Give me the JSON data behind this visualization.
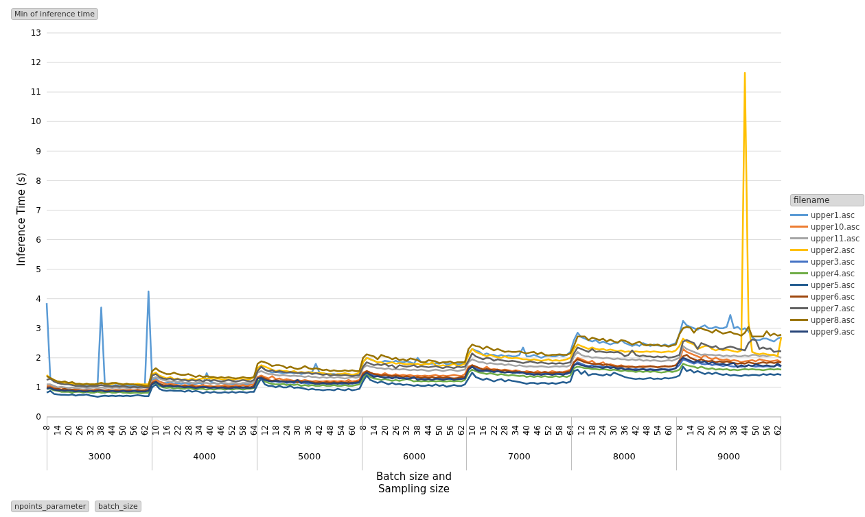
{
  "chart_data": {
    "type": "line",
    "title": "Min of inference time",
    "xlabel": "Batch size and Sampling size",
    "ylabel": "Inference Time (s)",
    "legend_title": "filename",
    "legend": "right",
    "grid": "y",
    "marker": "none",
    "line_style": "solid",
    "ylim": [
      0,
      13
    ],
    "yticks": [
      0,
      1,
      2,
      3,
      4,
      5,
      6,
      7,
      8,
      9,
      10,
      11,
      12,
      13
    ],
    "annotations": [
      "3000",
      "4000",
      "5000",
      "6000",
      "7000",
      "8000",
      "9000",
      "npoints_parameter",
      "batch_size"
    ],
    "categories": [
      "8",
      null,
      null,
      "14",
      null,
      null,
      "20",
      null,
      null,
      "26",
      null,
      null,
      "32",
      null,
      null,
      "38",
      null,
      null,
      "44",
      null,
      null,
      "50",
      null,
      null,
      "56",
      null,
      null,
      "62",
      null,
      null,
      "10",
      null,
      null,
      "16",
      null,
      null,
      "22",
      null,
      null,
      "28",
      null,
      null,
      "34",
      null,
      null,
      "40",
      null,
      null,
      "46",
      null,
      null,
      "52",
      null,
      null,
      "58",
      null,
      null,
      "64",
      null,
      null,
      "12",
      null,
      null,
      "18",
      null,
      null,
      "24",
      null,
      null,
      "30",
      null,
      null,
      "36",
      null,
      null,
      "42",
      null,
      null,
      "48",
      null,
      null,
      "54",
      null,
      null,
      "60",
      null,
      null,
      "8",
      null,
      null,
      "14",
      null,
      null,
      "20",
      null,
      null,
      "26",
      null,
      null,
      "32",
      null,
      null,
      "38",
      null,
      null,
      "44",
      null,
      null,
      "50",
      null,
      null,
      "56",
      null,
      null,
      "62",
      null,
      null,
      "10",
      null,
      null,
      "16",
      null,
      null,
      "22",
      null,
      null,
      "28",
      null,
      null,
      "34",
      null,
      null,
      "40",
      null,
      null,
      "46",
      null,
      null,
      "52",
      null,
      null,
      "58",
      null,
      null,
      "64",
      null,
      null,
      "12",
      null,
      null,
      "18",
      null,
      null,
      "24",
      null,
      null,
      "30",
      null,
      null,
      "36",
      null,
      null,
      "42",
      null,
      null,
      "48",
      null,
      null,
      "54",
      null,
      null,
      "60",
      null,
      null,
      "8",
      null,
      null,
      "14",
      null,
      null,
      "20",
      null,
      null,
      "26",
      null,
      null,
      "32",
      null,
      null,
      "38",
      null,
      null,
      "44",
      null,
      null,
      "50",
      null,
      null,
      "56",
      null,
      null,
      "62",
      null
    ],
    "series": [
      {
        "name": "upper1.asc",
        "color": "#5b9bd5",
        "values": [
          3.85,
          1.3,
          1.2,
          1.15,
          1.15,
          1.2,
          1.1,
          1.12,
          1.05,
          1.05,
          1.08,
          1.05,
          1.05,
          1.05,
          1.1,
          3.7,
          1.08,
          1.05,
          1.05,
          1.08,
          1.05,
          1.05,
          1.08,
          1.05,
          1.05,
          1.05,
          1.05,
          1.05,
          4.25,
          1.25,
          1.3,
          1.2,
          1.15,
          1.15,
          1.18,
          1.12,
          1.15,
          1.12,
          1.15,
          1.12,
          1.1,
          1.12,
          1.15,
          1.1,
          1.48,
          1.2,
          1.15,
          1.12,
          1.15,
          1.12,
          1.1,
          1.12,
          1.1,
          1.12,
          1.1,
          1.12,
          1.1,
          1.1,
          1.65,
          1.7,
          1.6,
          1.55,
          1.5,
          1.52,
          1.5,
          1.48,
          1.5,
          1.5,
          1.48,
          1.5,
          1.45,
          1.48,
          1.5,
          1.52,
          1.8,
          1.5,
          1.48,
          1.45,
          1.45,
          1.45,
          1.42,
          1.45,
          1.42,
          1.45,
          1.42,
          1.4,
          1.4,
          1.85,
          2.0,
          1.95,
          1.9,
          1.85,
          1.85,
          1.9,
          1.88,
          1.85,
          1.9,
          1.85,
          1.85,
          1.88,
          1.85,
          1.8,
          2.0,
          1.85,
          1.85,
          1.8,
          1.8,
          1.82,
          1.8,
          1.85,
          1.78,
          1.8,
          1.82,
          1.78,
          1.8,
          1.85,
          2.15,
          2.3,
          2.25,
          2.2,
          2.1,
          2.15,
          2.1,
          2.1,
          2.05,
          2.1,
          2.05,
          2.08,
          2.05,
          2.05,
          2.1,
          2.35,
          2.05,
          2.05,
          2.1,
          2.05,
          2.0,
          2.05,
          2.08,
          2.05,
          2.05,
          2.1,
          2.05,
          2.1,
          2.2,
          2.6,
          2.85,
          2.7,
          2.65,
          2.6,
          2.55,
          2.6,
          2.5,
          2.55,
          2.5,
          2.45,
          2.5,
          2.5,
          2.6,
          2.5,
          2.45,
          2.4,
          2.45,
          2.4,
          2.5,
          2.45,
          2.4,
          2.45,
          2.42,
          2.4,
          2.45,
          2.4,
          2.45,
          2.5,
          2.8,
          3.25,
          3.1,
          3.05,
          3.0,
          2.95,
          3.05,
          3.1,
          3.0,
          3.0,
          3.05,
          3.0,
          3.0,
          3.05,
          3.45,
          3.0,
          3.05,
          2.95,
          3.0,
          2.9,
          2.7,
          2.6,
          2.6,
          2.65,
          2.65,
          2.6,
          2.55,
          2.65,
          2.7
        ]
      },
      {
        "name": "upper10.asc",
        "color": "#ed7d31",
        "values": [
          1.05,
          1.05,
          1.0,
          0.95,
          1.0,
          0.95,
          0.95,
          0.92,
          0.95,
          0.92,
          0.9,
          0.92,
          0.9,
          0.92,
          0.95,
          0.92,
          0.9,
          0.92,
          0.9,
          0.92,
          0.9,
          0.92,
          0.9,
          0.92,
          0.9,
          0.92,
          0.9,
          0.92,
          0.95,
          1.2,
          1.25,
          1.2,
          1.15,
          1.1,
          1.12,
          1.1,
          1.08,
          1.05,
          1.08,
          1.05,
          1.08,
          1.05,
          1.05,
          1.08,
          1.05,
          1.05,
          1.02,
          1.05,
          1.05,
          1.08,
          1.05,
          1.05,
          1.08,
          1.05,
          1.08,
          1.05,
          1.08,
          1.1,
          1.35,
          1.4,
          1.35,
          1.3,
          1.38,
          1.28,
          1.3,
          1.25,
          1.28,
          1.25,
          1.22,
          1.25,
          1.22,
          1.25,
          1.22,
          1.2,
          1.22,
          1.2,
          1.2,
          1.22,
          1.2,
          1.22,
          1.2,
          1.22,
          1.2,
          1.25,
          1.2,
          1.22,
          1.25,
          1.5,
          1.55,
          1.5,
          1.45,
          1.45,
          1.42,
          1.48,
          1.42,
          1.4,
          1.45,
          1.4,
          1.42,
          1.4,
          1.42,
          1.38,
          1.4,
          1.38,
          1.4,
          1.38,
          1.4,
          1.42,
          1.38,
          1.4,
          1.38,
          1.4,
          1.42,
          1.4,
          1.38,
          1.45,
          1.7,
          1.75,
          1.7,
          1.65,
          1.62,
          1.7,
          1.6,
          1.62,
          1.6,
          1.58,
          1.6,
          1.58,
          1.55,
          1.58,
          1.55,
          1.5,
          1.55,
          1.52,
          1.5,
          1.55,
          1.5,
          1.52,
          1.5,
          1.55,
          1.52,
          1.5,
          1.52,
          1.55,
          1.6,
          1.85,
          2.0,
          1.95,
          1.9,
          1.85,
          1.9,
          1.8,
          1.8,
          1.85,
          1.75,
          1.78,
          1.75,
          1.72,
          1.75,
          1.7,
          1.72,
          1.7,
          1.68,
          1.7,
          1.72,
          1.7,
          1.72,
          1.7,
          1.68,
          1.7,
          1.72,
          1.7,
          1.72,
          1.75,
          1.9,
          2.3,
          2.2,
          2.15,
          2.1,
          2.05,
          2.0,
          2.1,
          2.0,
          1.95,
          2.0,
          1.95,
          1.92,
          1.95,
          1.9,
          1.92,
          1.9,
          1.85,
          1.88,
          1.9,
          1.92,
          1.88,
          1.95,
          1.92,
          1.9,
          1.88,
          1.9,
          1.92,
          1.85
        ]
      },
      {
        "name": "upper11.asc",
        "color": "#a5a5a5",
        "values": [
          1.1,
          1.1,
          1.05,
          1.0,
          1.02,
          1.0,
          0.98,
          1.0,
          0.98,
          0.98,
          1.0,
          0.98,
          0.98,
          1.0,
          0.98,
          1.0,
          0.98,
          1.0,
          0.98,
          1.0,
          0.98,
          1.0,
          0.98,
          0.98,
          1.0,
          0.98,
          0.98,
          1.0,
          1.0,
          1.3,
          1.35,
          1.3,
          1.25,
          1.22,
          1.2,
          1.2,
          1.18,
          1.2,
          1.15,
          1.18,
          1.15,
          1.15,
          1.18,
          1.15,
          1.15,
          1.12,
          1.15,
          1.12,
          1.15,
          1.15,
          1.12,
          1.15,
          1.15,
          1.12,
          1.15,
          1.15,
          1.15,
          1.2,
          1.5,
          1.55,
          1.5,
          1.45,
          1.45,
          1.42,
          1.4,
          1.42,
          1.4,
          1.38,
          1.4,
          1.38,
          1.38,
          1.35,
          1.38,
          1.35,
          1.35,
          1.32,
          1.35,
          1.32,
          1.35,
          1.32,
          1.35,
          1.32,
          1.3,
          1.32,
          1.35,
          1.32,
          1.35,
          1.65,
          1.75,
          1.7,
          1.68,
          1.65,
          1.65,
          1.62,
          1.65,
          1.6,
          1.62,
          1.6,
          1.62,
          1.6,
          1.58,
          1.6,
          1.58,
          1.6,
          1.58,
          1.55,
          1.58,
          1.6,
          1.58,
          1.55,
          1.58,
          1.6,
          1.58,
          1.55,
          1.58,
          1.6,
          1.85,
          1.95,
          1.9,
          1.85,
          1.85,
          1.8,
          1.82,
          1.8,
          1.78,
          1.8,
          1.75,
          1.78,
          1.75,
          1.72,
          1.75,
          1.72,
          1.7,
          1.72,
          1.7,
          1.7,
          1.72,
          1.7,
          1.68,
          1.7,
          1.72,
          1.7,
          1.72,
          1.7,
          1.75,
          2.05,
          2.2,
          2.1,
          2.05,
          2.05,
          2.0,
          2.02,
          2.0,
          1.98,
          2.0,
          1.98,
          1.95,
          1.98,
          1.95,
          1.95,
          1.92,
          1.95,
          1.92,
          1.95,
          1.9,
          1.92,
          1.9,
          1.92,
          1.9,
          1.88,
          1.9,
          1.92,
          1.9,
          1.95,
          2.0,
          2.4,
          2.3,
          2.25,
          2.2,
          2.15,
          2.1,
          2.12,
          2.1,
          2.1,
          2.08,
          2.1,
          2.05,
          2.08,
          2.05,
          2.08,
          2.05,
          2.05,
          2.08,
          2.05,
          2.1,
          2.1,
          2.05,
          2.08,
          2.05,
          2.08,
          2.1,
          2.05,
          2.0
        ]
      },
      {
        "name": "upper2.asc",
        "color": "#ffc000",
        "values": [
          1.42,
          1.3,
          1.25,
          1.2,
          1.18,
          1.15,
          1.15,
          1.12,
          1.1,
          1.12,
          1.1,
          1.12,
          1.1,
          1.1,
          1.12,
          1.15,
          1.12,
          1.1,
          1.12,
          1.15,
          1.12,
          1.1,
          1.12,
          1.1,
          1.1,
          1.12,
          1.1,
          1.1,
          1.1,
          1.45,
          1.5,
          1.4,
          1.35,
          1.3,
          1.35,
          1.28,
          1.3,
          1.25,
          1.28,
          1.25,
          1.3,
          1.25,
          1.28,
          1.3,
          1.3,
          1.3,
          1.28,
          1.3,
          1.28,
          1.25,
          1.28,
          1.25,
          1.28,
          1.3,
          1.28,
          1.25,
          1.28,
          1.35,
          1.65,
          1.75,
          1.7,
          1.65,
          1.6,
          1.55,
          1.58,
          1.55,
          1.55,
          1.52,
          1.55,
          1.5,
          1.52,
          1.5,
          1.52,
          1.5,
          1.48,
          1.5,
          1.48,
          1.45,
          1.45,
          1.42,
          1.45,
          1.45,
          1.48,
          1.45,
          1.42,
          1.45,
          1.5,
          1.85,
          2.0,
          1.95,
          1.9,
          1.85,
          1.85,
          1.8,
          1.82,
          1.85,
          1.8,
          1.82,
          1.8,
          1.78,
          1.8,
          1.78,
          1.8,
          1.75,
          1.8,
          1.78,
          1.85,
          1.75,
          1.72,
          1.75,
          1.72,
          1.75,
          1.8,
          1.72,
          1.75,
          1.8,
          2.1,
          2.3,
          2.2,
          2.15,
          2.1,
          2.05,
          2.1,
          2.05,
          2.02,
          2.0,
          2.05,
          2.0,
          1.98,
          2.0,
          1.98,
          1.95,
          1.95,
          1.92,
          1.95,
          1.92,
          1.9,
          1.92,
          1.95,
          1.9,
          1.92,
          1.9,
          1.92,
          1.95,
          2.0,
          2.3,
          2.45,
          2.4,
          2.35,
          2.3,
          2.35,
          2.3,
          2.28,
          2.3,
          2.25,
          2.28,
          2.25,
          2.22,
          2.25,
          2.2,
          2.22,
          2.2,
          2.22,
          2.2,
          2.2,
          2.22,
          2.2,
          2.22,
          2.2,
          2.18,
          2.2,
          2.22,
          2.2,
          2.25,
          2.4,
          2.65,
          2.55,
          2.5,
          2.45,
          2.3,
          2.35,
          2.4,
          2.4,
          2.3,
          2.25,
          2.3,
          2.25,
          2.28,
          2.25,
          2.22,
          2.2,
          2.25,
          11.65,
          3.2,
          2.2,
          2.15,
          2.12,
          2.15,
          2.12,
          2.1,
          2.1,
          2.05,
          2.7
        ]
      },
      {
        "name": "upper3.asc",
        "color": "#4472c4",
        "values": [
          1.0,
          1.0,
          0.95,
          0.92,
          0.92,
          0.9,
          0.9,
          0.88,
          0.9,
          0.88,
          0.88,
          0.9,
          0.88,
          0.88,
          0.9,
          0.88,
          0.88,
          0.86,
          0.88,
          0.88,
          0.86,
          0.88,
          0.88,
          0.86,
          0.88,
          0.88,
          0.86,
          0.88,
          0.9,
          1.15,
          1.2,
          1.1,
          1.05,
          1.05,
          1.02,
          1.05,
          1.0,
          1.02,
          1.0,
          1.02,
          1.0,
          0.98,
          1.0,
          1.02,
          1.0,
          0.98,
          1.0,
          0.98,
          1.0,
          1.0,
          0.98,
          1.0,
          1.02,
          1.0,
          0.98,
          1.0,
          1.0,
          1.02,
          1.3,
          1.35,
          1.25,
          1.22,
          1.2,
          1.2,
          1.18,
          1.2,
          1.15,
          1.18,
          1.15,
          1.18,
          1.15,
          1.15,
          1.12,
          1.15,
          1.12,
          1.15,
          1.12,
          1.15,
          1.12,
          1.12,
          1.15,
          1.12,
          1.12,
          1.15,
          1.12,
          1.15,
          1.15,
          1.4,
          1.5,
          1.45,
          1.4,
          1.38,
          1.35,
          1.35,
          1.32,
          1.35,
          1.32,
          1.35,
          1.3,
          1.32,
          1.3,
          1.32,
          1.3,
          1.28,
          1.3,
          1.28,
          1.25,
          1.28,
          1.3,
          1.28,
          1.3,
          1.28,
          1.3,
          1.28,
          1.3,
          1.32,
          1.6,
          1.7,
          1.65,
          1.6,
          1.58,
          1.55,
          1.55,
          1.52,
          1.55,
          1.52,
          1.5,
          1.52,
          1.5,
          1.5,
          1.48,
          1.5,
          1.45,
          1.48,
          1.45,
          1.48,
          1.45,
          1.48,
          1.45,
          1.45,
          1.48,
          1.45,
          1.48,
          1.45,
          1.5,
          1.75,
          1.85,
          1.8,
          1.75,
          1.72,
          1.75,
          1.7,
          1.72,
          1.7,
          1.68,
          1.7,
          1.68,
          1.65,
          1.68,
          1.6,
          1.62,
          1.6,
          1.62,
          1.6,
          1.62,
          1.6,
          1.62,
          1.6,
          1.58,
          1.6,
          1.62,
          1.6,
          1.62,
          1.65,
          1.75,
          1.95,
          1.9,
          1.85,
          1.8,
          1.85,
          1.8,
          1.78,
          1.8,
          1.75,
          1.78,
          1.75,
          1.72,
          1.75,
          1.72,
          1.7,
          1.72,
          1.7,
          1.72,
          1.75,
          1.72,
          1.7,
          1.72,
          1.7,
          1.72,
          1.7,
          1.72,
          1.75,
          1.7
        ]
      },
      {
        "name": "upper4.asc",
        "color": "#70ad47",
        "values": [
          0.95,
          0.95,
          0.9,
          0.88,
          0.85,
          0.85,
          0.85,
          0.82,
          0.85,
          0.85,
          0.82,
          0.85,
          0.82,
          0.82,
          0.85,
          0.82,
          0.82,
          0.85,
          0.82,
          0.82,
          0.85,
          0.82,
          0.82,
          0.8,
          0.82,
          0.82,
          0.8,
          0.82,
          0.82,
          1.1,
          1.15,
          1.05,
          1.0,
          0.98,
          1.0,
          0.95,
          0.98,
          0.95,
          0.95,
          0.98,
          0.95,
          0.92,
          0.95,
          0.95,
          0.92,
          0.95,
          0.92,
          0.95,
          0.95,
          0.92,
          0.95,
          0.92,
          0.95,
          0.95,
          0.92,
          0.95,
          0.95,
          0.98,
          1.2,
          1.3,
          1.2,
          1.15,
          1.12,
          1.1,
          1.1,
          1.12,
          1.08,
          1.1,
          1.08,
          1.1,
          1.05,
          1.08,
          1.05,
          1.08,
          1.05,
          1.05,
          1.08,
          1.05,
          1.05,
          1.08,
          1.05,
          1.05,
          1.08,
          1.05,
          1.05,
          1.08,
          1.1,
          1.3,
          1.45,
          1.35,
          1.3,
          1.28,
          1.25,
          1.28,
          1.25,
          1.22,
          1.25,
          1.22,
          1.25,
          1.28,
          1.25,
          1.2,
          1.22,
          1.2,
          1.22,
          1.2,
          1.22,
          1.2,
          1.22,
          1.2,
          1.2,
          1.22,
          1.2,
          1.22,
          1.2,
          1.25,
          1.5,
          1.6,
          1.55,
          1.5,
          1.48,
          1.45,
          1.48,
          1.45,
          1.42,
          1.45,
          1.42,
          1.4,
          1.42,
          1.4,
          1.38,
          1.4,
          1.35,
          1.38,
          1.35,
          1.38,
          1.35,
          1.38,
          1.35,
          1.35,
          1.38,
          1.35,
          1.38,
          1.35,
          1.4,
          1.65,
          1.7,
          1.68,
          1.65,
          1.65,
          1.62,
          1.62,
          1.6,
          1.62,
          1.6,
          1.58,
          1.6,
          1.58,
          1.55,
          1.58,
          1.55,
          1.55,
          1.52,
          1.55,
          1.52,
          1.55,
          1.52,
          1.55,
          1.52,
          1.5,
          1.52,
          1.55,
          1.52,
          1.55,
          1.6,
          1.8,
          1.75,
          1.72,
          1.7,
          1.65,
          1.7,
          1.65,
          1.62,
          1.65,
          1.6,
          1.62,
          1.6,
          1.62,
          1.58,
          1.6,
          1.58,
          1.6,
          1.62,
          1.6,
          1.62,
          1.6,
          1.6,
          1.58,
          1.6,
          1.62,
          1.6,
          1.62,
          1.6
        ]
      },
      {
        "name": "upper5.asc",
        "color": "#255e91",
        "values": [
          0.82,
          0.88,
          0.78,
          0.76,
          0.75,
          0.75,
          0.74,
          0.76,
          0.72,
          0.75,
          0.74,
          0.76,
          0.72,
          0.7,
          0.68,
          0.7,
          0.72,
          0.7,
          0.72,
          0.7,
          0.72,
          0.7,
          0.72,
          0.7,
          0.72,
          0.74,
          0.72,
          0.7,
          0.7,
          1.0,
          1.1,
          0.95,
          0.9,
          0.88,
          0.9,
          0.88,
          0.88,
          0.88,
          0.85,
          0.9,
          0.85,
          0.88,
          0.85,
          0.8,
          0.85,
          0.82,
          0.85,
          0.82,
          0.82,
          0.84,
          0.82,
          0.85,
          0.82,
          0.85,
          0.84,
          0.82,
          0.85,
          0.85,
          1.1,
          1.3,
          1.1,
          1.05,
          1.05,
          1.0,
          1.05,
          1.0,
          1.0,
          1.05,
          0.98,
          1.0,
          0.98,
          0.95,
          0.92,
          0.95,
          0.92,
          0.92,
          0.9,
          0.92,
          0.92,
          0.9,
          0.95,
          0.92,
          0.9,
          0.95,
          0.9,
          0.92,
          0.95,
          1.2,
          1.4,
          1.25,
          1.2,
          1.15,
          1.2,
          1.15,
          1.1,
          1.15,
          1.1,
          1.12,
          1.08,
          1.1,
          1.08,
          1.05,
          1.08,
          1.05,
          1.05,
          1.08,
          1.05,
          1.1,
          1.05,
          1.08,
          1.02,
          1.05,
          1.08,
          1.05,
          1.05,
          1.1,
          1.3,
          1.5,
          1.35,
          1.3,
          1.25,
          1.3,
          1.25,
          1.2,
          1.25,
          1.28,
          1.2,
          1.25,
          1.22,
          1.2,
          1.18,
          1.15,
          1.12,
          1.15,
          1.15,
          1.12,
          1.15,
          1.15,
          1.12,
          1.15,
          1.12,
          1.15,
          1.18,
          1.15,
          1.2,
          1.55,
          1.6,
          1.45,
          1.55,
          1.4,
          1.45,
          1.45,
          1.42,
          1.4,
          1.45,
          1.4,
          1.5,
          1.45,
          1.4,
          1.35,
          1.32,
          1.3,
          1.28,
          1.3,
          1.28,
          1.3,
          1.32,
          1.28,
          1.3,
          1.28,
          1.32,
          1.3,
          1.32,
          1.35,
          1.4,
          1.7,
          1.55,
          1.6,
          1.5,
          1.55,
          1.5,
          1.45,
          1.5,
          1.45,
          1.5,
          1.45,
          1.42,
          1.45,
          1.4,
          1.42,
          1.4,
          1.38,
          1.42,
          1.4,
          1.42,
          1.42,
          1.4,
          1.45,
          1.42,
          1.45,
          1.42,
          1.45,
          1.42
        ]
      },
      {
        "name": "upper6.asc",
        "color": "#9e480e",
        "values": [
          1.0,
          1.0,
          0.95,
          0.95,
          0.92,
          0.95,
          0.9,
          0.92,
          0.9,
          0.88,
          0.9,
          0.88,
          0.9,
          0.88,
          0.9,
          0.88,
          0.88,
          0.9,
          0.88,
          0.88,
          0.9,
          0.88,
          0.9,
          0.88,
          0.88,
          0.9,
          0.88,
          0.88,
          0.9,
          1.15,
          1.2,
          1.12,
          1.08,
          1.05,
          1.08,
          1.05,
          1.05,
          1.02,
          1.05,
          1.02,
          1.05,
          1.0,
          1.02,
          1.0,
          1.02,
          1.0,
          1.02,
          1.0,
          1.0,
          1.02,
          1.0,
          1.02,
          1.0,
          1.02,
          1.0,
          1.02,
          1.0,
          1.05,
          1.3,
          1.35,
          1.3,
          1.25,
          1.22,
          1.25,
          1.22,
          1.2,
          1.22,
          1.2,
          1.2,
          1.18,
          1.2,
          1.18,
          1.2,
          1.18,
          1.15,
          1.18,
          1.15,
          1.18,
          1.15,
          1.18,
          1.15,
          1.18,
          1.15,
          1.18,
          1.15,
          1.18,
          1.2,
          1.45,
          1.55,
          1.5,
          1.45,
          1.42,
          1.4,
          1.42,
          1.4,
          1.38,
          1.4,
          1.38,
          1.35,
          1.38,
          1.35,
          1.32,
          1.35,
          1.32,
          1.35,
          1.32,
          1.35,
          1.32,
          1.35,
          1.32,
          1.35,
          1.32,
          1.3,
          1.32,
          1.35,
          1.35,
          1.65,
          1.75,
          1.7,
          1.65,
          1.6,
          1.62,
          1.6,
          1.58,
          1.6,
          1.55,
          1.58,
          1.55,
          1.52,
          1.55,
          1.5,
          1.52,
          1.5,
          1.52,
          1.5,
          1.48,
          1.5,
          1.52,
          1.5,
          1.48,
          1.5,
          1.52,
          1.5,
          1.52,
          1.55,
          1.85,
          1.95,
          1.9,
          1.85,
          1.82,
          1.8,
          1.78,
          1.8,
          1.75,
          1.78,
          1.75,
          1.72,
          1.7,
          1.72,
          1.7,
          1.68,
          1.7,
          1.68,
          1.7,
          1.68,
          1.7,
          1.72,
          1.7,
          1.68,
          1.7,
          1.72,
          1.7,
          1.72,
          1.75,
          1.85,
          2.05,
          2.1,
          2.0,
          1.95,
          1.9,
          1.95,
          1.9,
          1.88,
          1.9,
          1.85,
          1.88,
          1.85,
          1.88,
          1.85,
          1.82,
          1.8,
          1.82,
          1.8,
          1.85,
          1.82,
          1.8,
          1.82,
          1.85,
          1.82,
          1.85,
          1.82,
          1.85,
          1.85
        ]
      },
      {
        "name": "upper7.asc",
        "color": "#636363",
        "values": [
          1.25,
          1.3,
          1.2,
          1.15,
          1.12,
          1.1,
          1.1,
          1.08,
          1.05,
          1.05,
          1.05,
          1.02,
          1.05,
          1.05,
          1.05,
          1.08,
          1.05,
          1.05,
          1.02,
          1.05,
          1.02,
          1.05,
          1.02,
          1.0,
          1.02,
          1.0,
          1.02,
          1.0,
          1.0,
          1.4,
          1.45,
          1.35,
          1.3,
          1.28,
          1.3,
          1.25,
          1.28,
          1.25,
          1.25,
          1.22,
          1.25,
          1.22,
          1.25,
          1.2,
          1.25,
          1.22,
          1.25,
          1.22,
          1.2,
          1.22,
          1.25,
          1.22,
          1.2,
          1.22,
          1.25,
          1.22,
          1.2,
          1.25,
          1.55,
          1.7,
          1.6,
          1.55,
          1.58,
          1.52,
          1.55,
          1.52,
          1.5,
          1.52,
          1.5,
          1.48,
          1.5,
          1.48,
          1.5,
          1.45,
          1.48,
          1.45,
          1.42,
          1.45,
          1.4,
          1.42,
          1.42,
          1.4,
          1.42,
          1.4,
          1.38,
          1.4,
          1.42,
          1.7,
          1.85,
          1.8,
          1.75,
          1.78,
          1.75,
          1.8,
          1.72,
          1.75,
          1.65,
          1.75,
          1.72,
          1.7,
          1.72,
          1.75,
          1.68,
          1.72,
          1.7,
          1.68,
          1.7,
          1.72,
          1.68,
          1.65,
          1.7,
          1.68,
          1.65,
          1.7,
          1.68,
          1.7,
          1.9,
          2.15,
          2.05,
          2.0,
          1.95,
          2.0,
          1.98,
          1.9,
          1.95,
          1.92,
          1.9,
          1.88,
          1.9,
          1.88,
          1.85,
          1.82,
          1.85,
          1.88,
          1.85,
          1.82,
          1.85,
          1.82,
          1.8,
          1.82,
          1.8,
          1.82,
          1.8,
          1.82,
          1.85,
          2.15,
          2.35,
          2.3,
          2.25,
          2.2,
          2.3,
          2.2,
          2.22,
          2.2,
          2.18,
          2.2,
          2.18,
          2.2,
          2.15,
          2.05,
          2.1,
          2.25,
          2.1,
          2.05,
          2.08,
          2.05,
          2.05,
          2.02,
          2.05,
          2.02,
          2.05,
          2.0,
          2.02,
          2.05,
          2.1,
          2.55,
          2.6,
          2.55,
          2.5,
          2.3,
          2.5,
          2.45,
          2.4,
          2.35,
          2.4,
          2.3,
          2.3,
          2.35,
          2.38,
          2.35,
          2.3,
          2.28,
          2.25,
          2.5,
          2.62,
          2.6,
          2.3,
          2.35,
          2.3,
          2.32,
          2.2,
          2.22,
          2.22
        ]
      },
      {
        "name": "upper8.asc",
        "color": "#997300",
        "values": [
          1.38,
          1.32,
          1.25,
          1.2,
          1.18,
          1.2,
          1.15,
          1.18,
          1.12,
          1.12,
          1.1,
          1.12,
          1.1,
          1.1,
          1.12,
          1.15,
          1.12,
          1.12,
          1.15,
          1.15,
          1.12,
          1.1,
          1.12,
          1.1,
          1.1,
          1.08,
          1.08,
          1.05,
          1.05,
          1.55,
          1.65,
          1.55,
          1.5,
          1.45,
          1.45,
          1.5,
          1.45,
          1.42,
          1.42,
          1.45,
          1.4,
          1.35,
          1.4,
          1.35,
          1.38,
          1.35,
          1.35,
          1.32,
          1.35,
          1.32,
          1.35,
          1.32,
          1.3,
          1.32,
          1.35,
          1.32,
          1.32,
          1.35,
          1.8,
          1.88,
          1.85,
          1.8,
          1.72,
          1.75,
          1.75,
          1.72,
          1.65,
          1.7,
          1.65,
          1.62,
          1.65,
          1.72,
          1.65,
          1.62,
          1.65,
          1.62,
          1.58,
          1.6,
          1.55,
          1.58,
          1.55,
          1.55,
          1.58,
          1.55,
          1.58,
          1.55,
          1.55,
          2.0,
          2.12,
          2.08,
          2.05,
          1.95,
          2.1,
          2.05,
          2.02,
          1.95,
          2.0,
          1.92,
          1.95,
          1.9,
          1.98,
          1.95,
          1.92,
          1.85,
          1.85,
          1.92,
          1.9,
          1.88,
          1.82,
          1.85,
          1.85,
          1.88,
          1.82,
          1.85,
          1.85,
          1.85,
          2.3,
          2.45,
          2.4,
          2.38,
          2.3,
          2.38,
          2.32,
          2.25,
          2.3,
          2.25,
          2.2,
          2.22,
          2.2,
          2.2,
          2.22,
          2.18,
          2.15,
          2.18,
          2.2,
          2.12,
          2.18,
          2.1,
          2.08,
          2.1,
          2.1,
          2.12,
          2.1,
          2.1,
          2.15,
          2.4,
          2.72,
          2.72,
          2.72,
          2.6,
          2.68,
          2.65,
          2.6,
          2.65,
          2.55,
          2.62,
          2.55,
          2.52,
          2.6,
          2.58,
          2.52,
          2.45,
          2.5,
          2.55,
          2.45,
          2.42,
          2.45,
          2.42,
          2.45,
          2.4,
          2.42,
          2.38,
          2.42,
          2.45,
          2.8,
          3.0,
          3.05,
          3.02,
          2.85,
          3.0,
          3.0,
          2.95,
          2.92,
          2.85,
          2.95,
          2.88,
          2.82,
          2.85,
          2.88,
          2.82,
          2.8,
          2.75,
          2.85,
          3.05,
          2.72,
          2.72,
          2.72,
          2.72,
          2.9,
          2.75,
          2.82,
          2.75,
          2.78
        ]
      },
      {
        "name": "upper9.asc",
        "color": "#264478",
        "values": [
          0.95,
          0.98,
          0.92,
          0.9,
          0.9,
          0.88,
          0.9,
          0.88,
          0.86,
          0.88,
          0.86,
          0.86,
          0.88,
          0.86,
          0.88,
          0.9,
          0.86,
          0.86,
          0.88,
          0.86,
          0.86,
          0.88,
          0.86,
          0.86,
          0.88,
          0.86,
          0.86,
          0.86,
          0.88,
          1.1,
          1.18,
          1.1,
          1.02,
          1.05,
          1.05,
          1.02,
          1.05,
          1.02,
          1.0,
          1.02,
          1.0,
          0.98,
          1.0,
          1.02,
          1.0,
          0.98,
          1.0,
          0.98,
          1.0,
          0.98,
          0.96,
          0.98,
          1.0,
          0.98,
          1.0,
          0.98,
          0.98,
          1.0,
          1.3,
          1.32,
          1.25,
          1.22,
          1.2,
          1.22,
          1.2,
          1.2,
          1.18,
          1.2,
          1.18,
          1.25,
          1.15,
          1.2,
          1.18,
          1.15,
          1.12,
          1.12,
          1.15,
          1.12,
          1.12,
          1.15,
          1.12,
          1.15,
          1.15,
          1.12,
          1.15,
          1.15,
          1.18,
          1.4,
          1.5,
          1.42,
          1.35,
          1.38,
          1.35,
          1.32,
          1.35,
          1.3,
          1.35,
          1.3,
          1.32,
          1.28,
          1.3,
          1.35,
          1.25,
          1.28,
          1.25,
          1.28,
          1.25,
          1.3,
          1.28,
          1.25,
          1.28,
          1.3,
          1.25,
          1.28,
          1.28,
          1.3,
          1.6,
          1.7,
          1.6,
          1.55,
          1.55,
          1.58,
          1.55,
          1.52,
          1.55,
          1.52,
          1.5,
          1.52,
          1.5,
          1.5,
          1.52,
          1.5,
          1.45,
          1.45,
          1.42,
          1.45,
          1.42,
          1.45,
          1.45,
          1.42,
          1.45,
          1.45,
          1.42,
          1.48,
          1.5,
          1.75,
          1.8,
          1.75,
          1.72,
          1.7,
          1.68,
          1.7,
          1.68,
          1.65,
          1.7,
          1.65,
          1.68,
          1.62,
          1.65,
          1.6,
          1.62,
          1.6,
          1.58,
          1.6,
          1.62,
          1.58,
          1.6,
          1.58,
          1.6,
          1.62,
          1.6,
          1.58,
          1.6,
          1.65,
          1.9,
          2.0,
          1.95,
          1.9,
          1.85,
          1.9,
          1.85,
          1.88,
          1.8,
          1.85,
          1.8,
          1.78,
          1.8,
          1.75,
          1.8,
          1.82,
          1.68,
          1.75,
          1.7,
          1.75,
          1.72,
          1.78,
          1.75,
          1.72,
          1.75,
          1.72,
          1.7,
          1.8,
          1.72
        ]
      }
    ]
  }
}
